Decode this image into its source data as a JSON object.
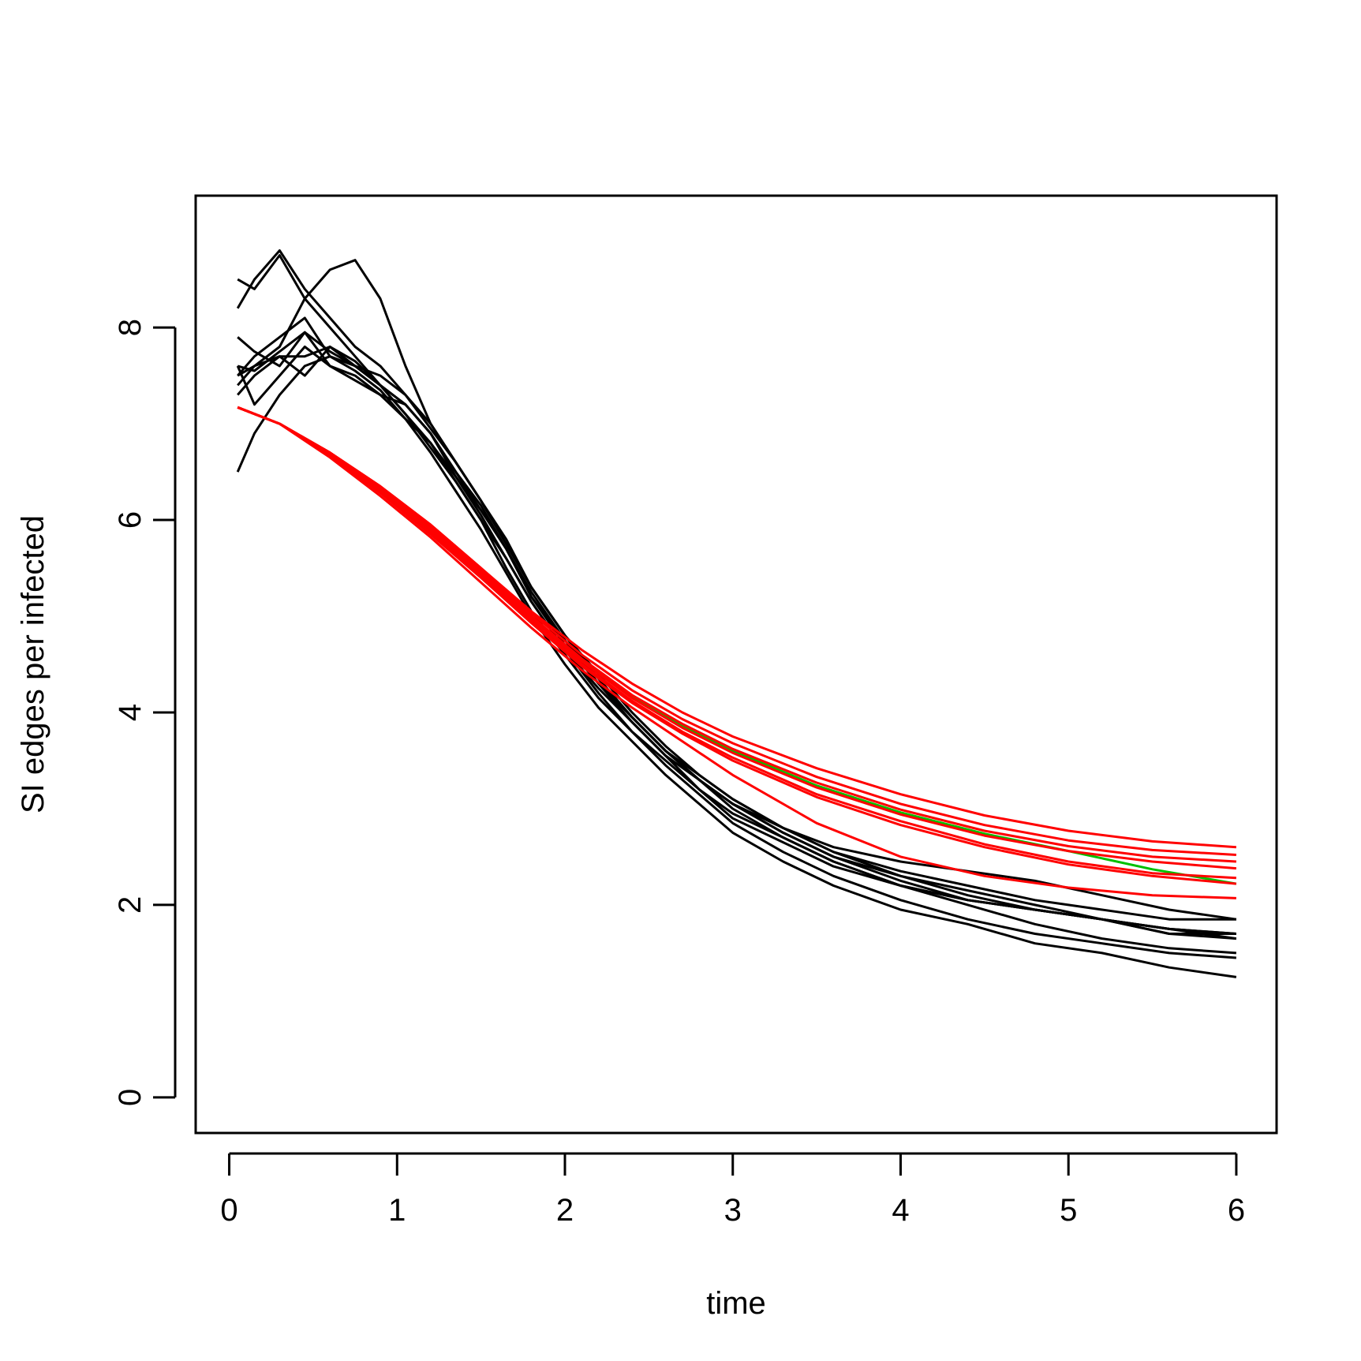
{
  "chart_data": {
    "type": "line",
    "title": "",
    "xlabel": "time",
    "ylabel": "SI edges per infected",
    "xlim": [
      -0.2,
      6.24
    ],
    "ylim": [
      -0.37,
      9.37
    ],
    "xticks": [
      "0",
      "1",
      "2",
      "3",
      "4",
      "5",
      "6"
    ],
    "yticks": [
      "0",
      "2",
      "4",
      "6",
      "8"
    ],
    "grid": false,
    "legend": "none",
    "colors": {
      "simulation": "#000000",
      "model": "#ff0000",
      "mean": "#00c000"
    },
    "simulation_runs": [
      {
        "x": [
          0.05,
          0.15,
          0.3,
          0.45,
          0.6,
          0.75,
          0.9,
          1.05,
          1.2,
          1.35,
          1.5,
          1.65,
          1.8,
          2.0,
          2.2,
          2.4,
          2.6,
          2.8,
          3.0,
          3.3,
          3.6,
          4.0,
          4.4,
          4.8,
          5.2,
          5.6,
          6.0
        ],
        "y": [
          8.5,
          8.4,
          8.75,
          8.3,
          8.0,
          7.7,
          7.4,
          7.2,
          6.9,
          6.5,
          6.1,
          5.7,
          5.2,
          4.75,
          4.35,
          3.95,
          3.6,
          3.3,
          3.05,
          2.75,
          2.5,
          2.25,
          2.05,
          1.95,
          1.85,
          1.75,
          1.7
        ]
      },
      {
        "x": [
          0.05,
          0.15,
          0.3,
          0.45,
          0.6,
          0.75,
          0.9,
          1.05,
          1.2,
          1.35,
          1.5,
          1.65,
          1.8,
          2.0,
          2.2,
          2.4,
          2.6,
          2.8,
          3.0,
          3.3,
          3.6,
          4.0,
          4.4,
          4.8,
          5.2,
          5.6,
          6.0
        ],
        "y": [
          8.2,
          8.5,
          8.8,
          8.4,
          8.1,
          7.8,
          7.6,
          7.3,
          7.0,
          6.6,
          6.2,
          5.8,
          5.3,
          4.8,
          4.4,
          4.0,
          3.65,
          3.35,
          3.1,
          2.8,
          2.55,
          2.3,
          2.1,
          1.95,
          1.85,
          1.75,
          1.65
        ]
      },
      {
        "x": [
          0.05,
          0.15,
          0.3,
          0.45,
          0.6,
          0.75,
          0.9,
          1.05,
          1.2,
          1.35,
          1.5,
          1.65,
          1.8,
          2.0,
          2.2,
          2.4,
          2.6,
          2.8,
          3.0,
          3.3,
          3.6,
          4.0,
          4.4,
          4.8,
          5.2,
          5.6,
          6.0
        ],
        "y": [
          7.9,
          7.75,
          7.6,
          7.95,
          7.75,
          7.6,
          7.4,
          7.1,
          6.8,
          6.45,
          6.1,
          5.7,
          5.25,
          4.75,
          4.3,
          3.95,
          3.6,
          3.3,
          3.0,
          2.7,
          2.45,
          2.2,
          2.05,
          1.95,
          1.85,
          1.7,
          1.7
        ]
      },
      {
        "x": [
          0.05,
          0.15,
          0.3,
          0.45,
          0.6,
          0.75,
          0.9,
          1.05,
          1.2,
          1.35,
          1.5,
          1.65,
          1.8,
          2.0,
          2.2,
          2.4,
          2.6,
          2.8,
          3.0,
          3.3,
          3.6,
          4.0,
          4.4,
          4.8,
          5.2,
          5.6,
          6.0
        ],
        "y": [
          7.6,
          7.55,
          7.75,
          7.95,
          7.6,
          7.45,
          7.3,
          7.2,
          6.9,
          6.5,
          6.15,
          5.7,
          5.2,
          4.7,
          4.3,
          3.9,
          3.55,
          3.2,
          2.95,
          2.7,
          2.45,
          2.2,
          2.05,
          1.95,
          1.85,
          1.75,
          1.7
        ]
      },
      {
        "x": [
          0.05,
          0.15,
          0.3,
          0.45,
          0.6,
          0.75,
          0.9,
          1.05,
          1.2,
          1.35,
          1.5,
          1.65,
          1.8,
          2.0,
          2.2,
          2.4,
          2.6,
          2.8,
          3.0,
          3.3,
          3.6,
          4.0,
          4.4,
          4.8,
          5.2,
          5.6,
          6.0
        ],
        "y": [
          7.5,
          7.7,
          7.9,
          8.1,
          7.7,
          7.6,
          7.5,
          7.3,
          6.95,
          6.6,
          6.2,
          5.75,
          5.3,
          4.8,
          4.35,
          3.95,
          3.6,
          3.35,
          3.1,
          2.8,
          2.55,
          2.35,
          2.2,
          2.05,
          1.95,
          1.85,
          1.85
        ]
      },
      {
        "x": [
          0.05,
          0.15,
          0.3,
          0.45,
          0.6,
          0.75,
          0.9,
          1.05,
          1.2,
          1.35,
          1.5,
          1.65,
          1.8,
          2.0,
          2.2,
          2.4,
          2.6,
          2.8,
          3.0,
          3.3,
          3.6,
          4.0,
          4.4,
          4.8,
          5.2,
          5.6,
          6.0
        ],
        "y": [
          7.4,
          7.6,
          7.7,
          7.7,
          7.8,
          7.65,
          7.4,
          7.2,
          6.9,
          6.45,
          6.05,
          5.6,
          5.15,
          4.65,
          4.25,
          3.9,
          3.55,
          3.3,
          3.05,
          2.8,
          2.6,
          2.45,
          2.35,
          2.25,
          2.1,
          1.95,
          1.85
        ]
      },
      {
        "x": [
          0.05,
          0.15,
          0.3,
          0.45,
          0.6,
          0.75,
          0.9,
          1.05,
          1.2,
          1.35,
          1.5,
          1.65,
          1.8,
          2.0,
          2.2,
          2.4,
          2.6,
          2.8,
          3.0,
          3.3,
          3.6,
          4.0,
          4.4,
          4.8,
          5.2,
          5.6,
          6.0
        ],
        "y": [
          7.3,
          7.5,
          7.7,
          7.5,
          7.8,
          7.6,
          7.4,
          7.1,
          6.75,
          6.4,
          6.0,
          5.6,
          5.15,
          4.65,
          4.2,
          3.8,
          3.5,
          3.2,
          2.9,
          2.65,
          2.4,
          2.2,
          2.0,
          1.8,
          1.65,
          1.55,
          1.5
        ]
      },
      {
        "x": [
          0.05,
          0.15,
          0.3,
          0.45,
          0.6,
          0.75,
          0.9,
          1.05,
          1.2,
          1.35,
          1.5,
          1.65,
          1.8,
          2.0,
          2.2,
          2.4,
          2.6,
          2.8,
          3.0,
          3.3,
          3.6,
          4.0,
          4.4,
          4.8,
          5.2,
          5.6,
          6.0
        ],
        "y": [
          7.6,
          7.2,
          7.5,
          7.8,
          7.6,
          7.5,
          7.3,
          7.05,
          6.8,
          6.4,
          6.0,
          5.5,
          5.05,
          4.6,
          4.15,
          3.8,
          3.45,
          3.15,
          2.85,
          2.55,
          2.3,
          2.05,
          1.85,
          1.7,
          1.6,
          1.5,
          1.45
        ]
      },
      {
        "x": [
          0.05,
          0.15,
          0.3,
          0.45,
          0.6,
          0.75,
          0.9,
          1.05,
          1.2,
          1.35,
          1.5,
          1.65,
          1.8,
          2.0,
          2.2,
          2.4,
          2.6,
          2.8,
          3.0,
          3.3,
          3.6,
          4.0,
          4.4,
          4.8,
          5.2,
          5.6,
          6.0
        ],
        "y": [
          6.5,
          6.9,
          7.3,
          7.6,
          7.7,
          7.55,
          7.35,
          7.05,
          6.7,
          6.3,
          5.9,
          5.45,
          5.0,
          4.5,
          4.05,
          3.7,
          3.35,
          3.05,
          2.75,
          2.45,
          2.2,
          1.95,
          1.8,
          1.6,
          1.5,
          1.35,
          1.25
        ]
      },
      {
        "x": [
          0.05,
          0.15,
          0.3,
          0.45,
          0.6,
          0.75,
          0.9,
          1.05,
          1.2,
          1.35,
          1.5,
          1.65,
          1.8,
          2.0,
          2.2,
          2.4,
          2.6,
          2.8,
          3.0,
          3.3,
          3.6,
          4.0,
          4.4,
          4.8,
          5.2,
          5.6,
          6.0
        ],
        "y": [
          7.5,
          7.6,
          7.8,
          8.3,
          8.6,
          8.7,
          8.3,
          7.6,
          7.0,
          6.6,
          6.2,
          5.75,
          5.3,
          4.8,
          4.35,
          3.95,
          3.6,
          3.3,
          3.05,
          2.75,
          2.5,
          2.3,
          2.15,
          2.0,
          1.85,
          1.7,
          1.65
        ]
      }
    ],
    "model_curves": [
      {
        "x": [
          0.05,
          0.3,
          0.6,
          0.9,
          1.2,
          1.5,
          1.8,
          2.1,
          2.4,
          2.7,
          3.0,
          3.5,
          4.0,
          4.5,
          5.0,
          5.5,
          6.0
        ],
        "y": [
          7.17,
          7.0,
          6.7,
          6.35,
          5.95,
          5.5,
          5.05,
          4.65,
          4.3,
          4.0,
          3.75,
          3.42,
          3.15,
          2.93,
          2.77,
          2.66,
          2.6
        ]
      },
      {
        "x": [
          0.05,
          0.3,
          0.6,
          0.9,
          1.2,
          1.5,
          1.8,
          2.1,
          2.4,
          2.7,
          3.0,
          3.5,
          4.0,
          4.5,
          5.0,
          5.5,
          6.0
        ],
        "y": [
          7.17,
          7.0,
          6.7,
          6.35,
          5.95,
          5.5,
          5.03,
          4.6,
          4.23,
          3.93,
          3.68,
          3.33,
          3.05,
          2.83,
          2.67,
          2.57,
          2.52
        ]
      },
      {
        "x": [
          0.05,
          0.3,
          0.6,
          0.9,
          1.2,
          1.5,
          1.8,
          2.1,
          2.4,
          2.7,
          3.0,
          3.5,
          4.0,
          4.5,
          5.0,
          5.5,
          6.0
        ],
        "y": [
          7.17,
          7.0,
          6.7,
          6.35,
          5.93,
          5.48,
          5.0,
          4.56,
          4.18,
          3.88,
          3.62,
          3.27,
          2.99,
          2.77,
          2.61,
          2.5,
          2.45
        ]
      },
      {
        "x": [
          0.05,
          0.3,
          0.6,
          0.9,
          1.2,
          1.5,
          1.8,
          2.1,
          2.4,
          2.7,
          3.0,
          3.5,
          4.0,
          4.5,
          5.0,
          5.5,
          6.0
        ],
        "y": [
          7.17,
          7.0,
          6.7,
          6.33,
          5.91,
          5.45,
          4.98,
          4.53,
          4.15,
          3.84,
          3.58,
          3.22,
          2.94,
          2.72,
          2.56,
          2.45,
          2.38
        ]
      },
      {
        "x": [
          0.05,
          0.3,
          0.6,
          0.9,
          1.2,
          1.5,
          1.8,
          2.1,
          2.4,
          2.7,
          3.0,
          3.5,
          4.0,
          4.5,
          5.0,
          5.5,
          6.0
        ],
        "y": [
          7.17,
          7.0,
          6.68,
          6.3,
          5.88,
          5.42,
          4.95,
          4.5,
          4.12,
          3.8,
          3.53,
          3.15,
          2.87,
          2.63,
          2.45,
          2.33,
          2.28
        ]
      },
      {
        "x": [
          0.05,
          0.3,
          0.6,
          0.9,
          1.2,
          1.5,
          1.8,
          2.1,
          2.4,
          2.7,
          3.0,
          3.5,
          4.0,
          4.5,
          5.0,
          5.5,
          6.0
        ],
        "y": [
          7.17,
          7.0,
          6.67,
          6.28,
          5.85,
          5.4,
          4.93,
          4.48,
          4.1,
          3.78,
          3.5,
          3.12,
          2.83,
          2.6,
          2.42,
          2.3,
          2.22
        ]
      },
      {
        "x": [
          0.05,
          0.3,
          0.6,
          0.9,
          1.2,
          1.5,
          1.8,
          2.1,
          2.4,
          2.7,
          3.0,
          3.5,
          4.0,
          4.5,
          5.0,
          5.5,
          6.0
        ],
        "y": [
          7.17,
          7.0,
          6.65,
          6.25,
          5.82,
          5.35,
          4.88,
          4.44,
          4.05,
          3.7,
          3.35,
          2.85,
          2.5,
          2.3,
          2.18,
          2.1,
          2.07
        ]
      }
    ],
    "mean_curve": {
      "x": [
        0.05,
        0.3,
        0.6,
        0.9,
        1.2,
        1.5,
        1.8,
        2.1,
        2.4,
        2.7,
        3.0,
        3.5,
        4.0,
        4.5,
        5.0,
        5.5,
        6.0
      ],
      "y": [
        7.17,
        7.0,
        6.69,
        6.32,
        5.9,
        5.45,
        4.98,
        4.54,
        4.16,
        3.86,
        3.6,
        3.24,
        2.96,
        2.74,
        2.56,
        2.37,
        2.22
      ]
    }
  }
}
